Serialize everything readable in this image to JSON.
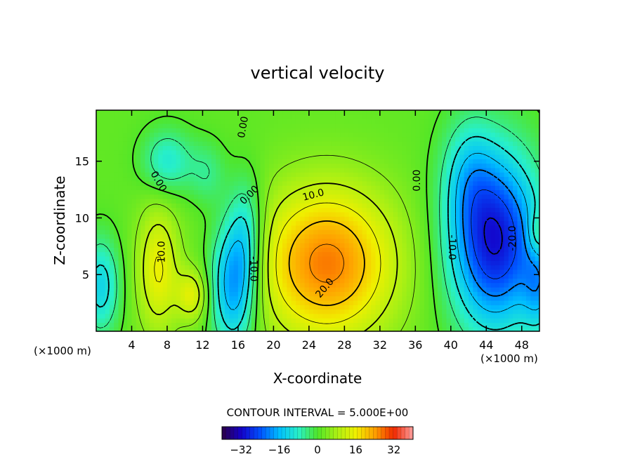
{
  "chart_data": {
    "type": "heatmap",
    "title": "vertical velocity",
    "xlabel": "X-coordinate",
    "ylabel": "Z-coordinate",
    "x_unit": "(×1000 m)",
    "z_unit": "(×1000 m)",
    "xlim": [
      0,
      50
    ],
    "ylim": [
      0,
      19.5
    ],
    "x_ticks": [
      "4",
      "8",
      "12",
      "16",
      "20",
      "24",
      "28",
      "32",
      "36",
      "40",
      "44",
      "48"
    ],
    "y_ticks": [
      "5",
      "10",
      "15"
    ],
    "contour_interval_label": "CONTOUR INTERVAL = 5.000E+00",
    "contour_labels": [
      {
        "text": "0.00",
        "x": 7.0,
        "z": 13.2,
        "rot": 60
      },
      {
        "text": "0.00",
        "x": 17.3,
        "z": 12.0,
        "rot": -45
      },
      {
        "text": "0.00",
        "x": 16.6,
        "z": 18.0,
        "rot": -80
      },
      {
        "text": "0.00",
        "x": 36.2,
        "z": 13.3,
        "rot": -90
      },
      {
        "text": "10.0",
        "x": 7.4,
        "z": 7.0,
        "rot": -90
      },
      {
        "text": "-10.0",
        "x": 17.7,
        "z": 5.5,
        "rot": 90
      },
      {
        "text": "10.0",
        "x": 24.5,
        "z": 12.0,
        "rot": -15
      },
      {
        "text": "20.0",
        "x": 25.8,
        "z": 3.8,
        "rot": -50
      },
      {
        "text": "-10.0",
        "x": 40.1,
        "z": 7.4,
        "rot": 90
      },
      {
        "text": "-20.0",
        "x": 47.0,
        "z": 8.2,
        "rot": -90
      }
    ],
    "centers": [
      {
        "x": 26.0,
        "z": 6.0,
        "amp": 25,
        "sx": 5.5,
        "sz": 4.8
      },
      {
        "x": 7.0,
        "z": 5.5,
        "amp": 14,
        "sx": 1.7,
        "sz": 4.0
      },
      {
        "x": 10.8,
        "z": 3.2,
        "amp": 12,
        "sx": 1.2,
        "sz": 1.6
      },
      {
        "x": 15.5,
        "z": 4.2,
        "amp": -22,
        "sx": 1.8,
        "sz": 4.0
      },
      {
        "x": 17.0,
        "z": 9.0,
        "amp": -10,
        "sx": 1.4,
        "sz": 3.5
      },
      {
        "x": 45.0,
        "z": 8.0,
        "amp": -32,
        "sx": 3.6,
        "sz": 5.5
      },
      {
        "x": 42.0,
        "z": 14.0,
        "amp": -8,
        "sx": 2.0,
        "sz": 3.5
      },
      {
        "x": 8.0,
        "z": 15.0,
        "amp": -11,
        "sx": 2.0,
        "sz": 2.0
      },
      {
        "x": 0.5,
        "z": 4.0,
        "amp": -14,
        "sx": 1.5,
        "sz": 3.0
      },
      {
        "x": 50.0,
        "z": 4.0,
        "amp": -12,
        "sx": 1.3,
        "sz": 3.0
      },
      {
        "x": 49.7,
        "z": 8.5,
        "amp": 8,
        "sx": 0.8,
        "sz": 1.5
      },
      {
        "x": 12.5,
        "z": 14.0,
        "amp": -6,
        "sx": 1.5,
        "sz": 2.0
      }
    ],
    "colorbar": {
      "min": -40,
      "max": 40,
      "ticks": [
        "-32",
        "-16",
        "0",
        "16",
        "32"
      ],
      "tick_values": [
        -32,
        -16,
        0,
        16,
        32
      ]
    }
  }
}
